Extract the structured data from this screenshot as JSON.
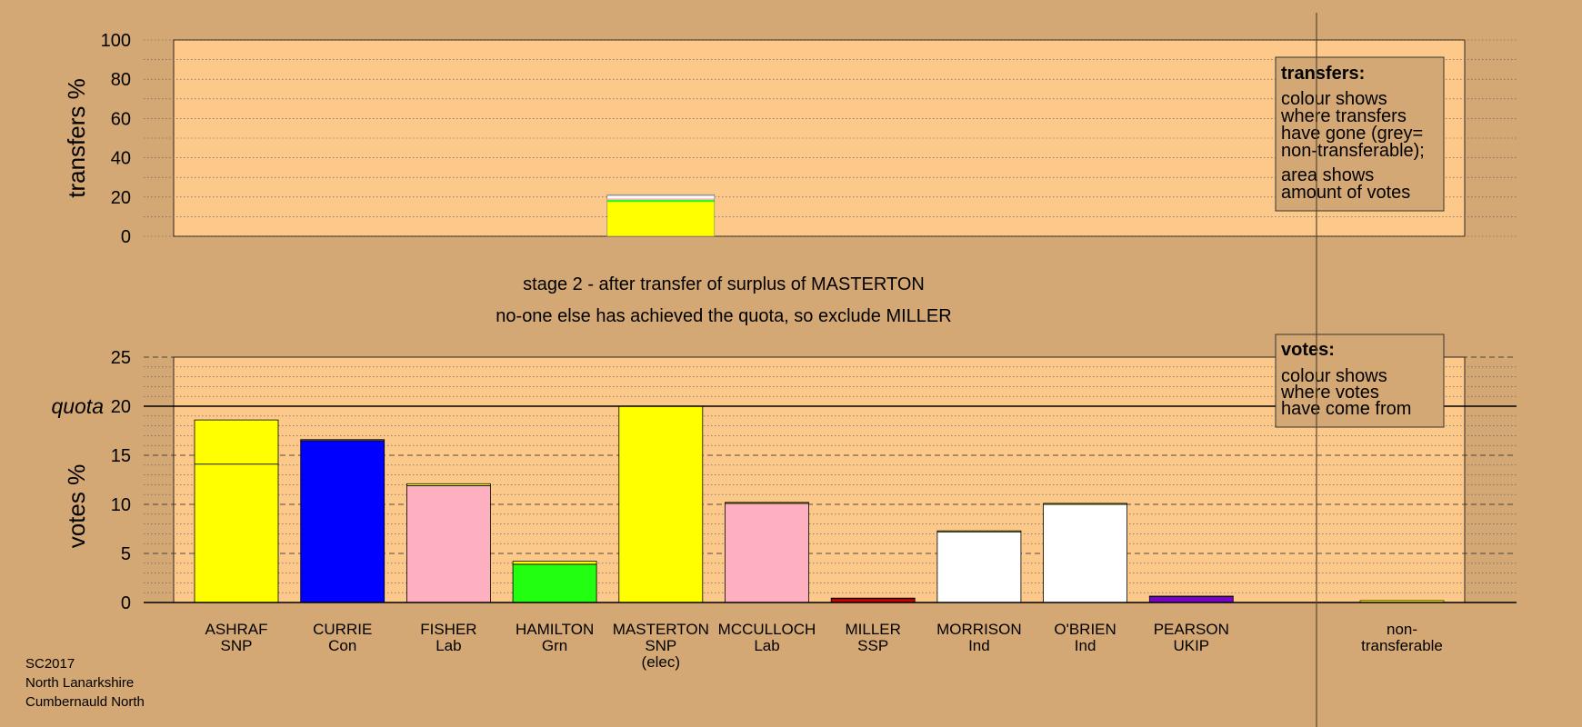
{
  "colors": {
    "background": "#d4a874",
    "plot_area": "#fdc98b",
    "SNP": "#ffff00",
    "Con": "#0000ff",
    "Lab": "#ffb0c0",
    "Grn": "#22ff11",
    "SSP": "#cc0000",
    "Ind": "#ffffff",
    "UKIP": "#7a00cc",
    "non_transferable": "#bbbbbb"
  },
  "header": {
    "stage_line": "stage 2 - after transfer of surplus of MASTERTON",
    "action_line": "no-one else has achieved the quota, so exclude MILLER"
  },
  "footer": {
    "election": "SC2017",
    "council": "North Lanarkshire",
    "ward": "Cumbernauld North"
  },
  "legends": {
    "transfers_title": "transfers:",
    "transfers_lines": [
      "colour shows",
      "where transfers",
      "have gone (grey=",
      "non-transferable);"
    ],
    "transfers_lines2": [
      "area shows",
      "amount of votes"
    ],
    "votes_title": "votes:",
    "votes_lines": [
      "colour shows",
      "where votes",
      "have come from"
    ]
  },
  "chart_data": [
    {
      "type": "bar",
      "ylabel": "transfers %",
      "ylim": [
        0,
        100
      ],
      "yticks": [
        0,
        20,
        40,
        60,
        80,
        100
      ],
      "grid": "dotted every 10",
      "legend_position": "top-right",
      "transfer_from": "MASTERTON",
      "transfer_segments": [
        {
          "to": "SNP",
          "value": 17.5
        },
        {
          "to": "Grn",
          "value": 1.0
        },
        {
          "to": "Lab",
          "value": 0.8
        },
        {
          "to": "Ind",
          "value": 1.2
        },
        {
          "to": "non-transferable",
          "value": 0.7
        }
      ]
    },
    {
      "type": "bar",
      "ylabel": "votes %",
      "ylim": [
        0,
        25
      ],
      "yticks": [
        0,
        5,
        10,
        15,
        20,
        25
      ],
      "quota": 20,
      "quota_label": "quota",
      "legend_position": "top-right",
      "categories": [
        {
          "name": "ASHRAF",
          "party": "SNP",
          "note": "",
          "color": "#ffff00",
          "base": 14.1,
          "transfer": 4.5
        },
        {
          "name": "CURRIE",
          "party": "Con",
          "note": "",
          "color": "#0000ff",
          "base": 16.5,
          "transfer": 0.1
        },
        {
          "name": "FISHER",
          "party": "Lab",
          "note": "",
          "color": "#ffb0c0",
          "base": 11.9,
          "transfer": 0.2
        },
        {
          "name": "HAMILTON",
          "party": "Grn",
          "note": "",
          "color": "#22ff11",
          "base": 3.9,
          "transfer": 0.3
        },
        {
          "name": "MASTERTON",
          "party": "SNP",
          "note": "(elec)",
          "color": "#ffff00",
          "base": 20.0,
          "transfer": 0
        },
        {
          "name": "MCCULLOCH",
          "party": "Lab",
          "note": "",
          "color": "#ffb0c0",
          "base": 10.1,
          "transfer": 0.1
        },
        {
          "name": "MILLER",
          "party": "SSP",
          "note": "",
          "color": "#cc0000",
          "base": 0.4,
          "transfer": 0.05
        },
        {
          "name": "MORRISON",
          "party": "Ind",
          "note": "",
          "color": "#ffffff",
          "base": 7.2,
          "transfer": 0.1
        },
        {
          "name": "O'BRIEN",
          "party": "Ind",
          "note": "",
          "color": "#ffffff",
          "base": 10.0,
          "transfer": 0.1
        },
        {
          "name": "PEARSON",
          "party": "UKIP",
          "note": "",
          "color": "#7a00cc",
          "base": 0.6,
          "transfer": 0.05
        }
      ],
      "non_transferable": {
        "label_line1": "non-",
        "label_line2": "transferable",
        "value": 0.2
      }
    }
  ]
}
